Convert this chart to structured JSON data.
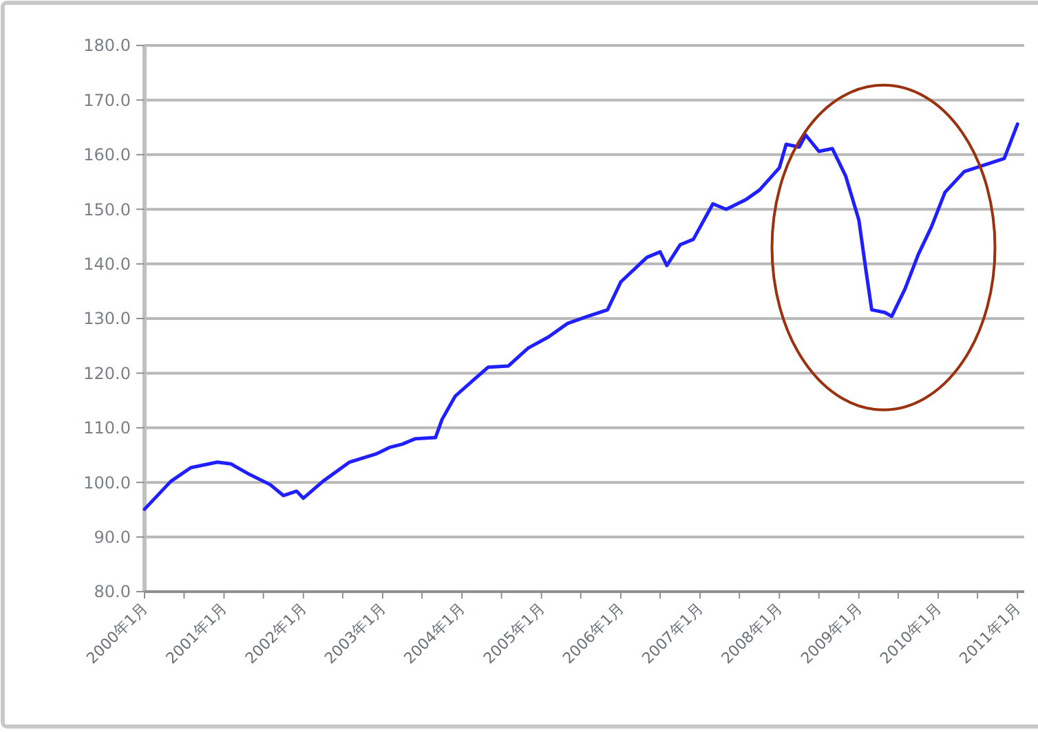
{
  "chart_data": {
    "type": "line",
    "grid": "y",
    "marker": "none",
    "line_style": "solid",
    "x": [
      "2000-01",
      "2000-05",
      "2000-08",
      "2000-12",
      "2001-02",
      "2001-05",
      "2001-08",
      "2001-10",
      "2001-12",
      "2002-01",
      "2002-04",
      "2002-08",
      "2002-12",
      "2003-02",
      "2003-04",
      "2003-06",
      "2003-09",
      "2003-10",
      "2003-12",
      "2004-03",
      "2004-05",
      "2004-08",
      "2004-11",
      "2005-02",
      "2005-05",
      "2005-08",
      "2005-11",
      "2006-01",
      "2006-05",
      "2006-07",
      "2006-08",
      "2006-10",
      "2006-12",
      "2007-03",
      "2007-05",
      "2007-08",
      "2007-10",
      "2008-01",
      "2008-02",
      "2008-04",
      "2008-05",
      "2008-07",
      "2008-09",
      "2008-11",
      "2009-01",
      "2009-02",
      "2009-03",
      "2009-05",
      "2009-06",
      "2009-08",
      "2009-10",
      "2009-12",
      "2010-02",
      "2010-05",
      "2010-08",
      "2010-11",
      "2011-01"
    ],
    "series": [
      {
        "color": "#2020ff",
        "values": [
          95.1,
          100.2,
          102.7,
          103.7,
          103.4,
          101.4,
          99.6,
          97.6,
          98.4,
          97.1,
          100.2,
          103.7,
          105.2,
          106.4,
          107,
          108,
          108.2,
          111.5,
          115.8,
          119,
          121.1,
          121.3,
          124.6,
          126.6,
          129.1,
          130.4,
          131.6,
          136.7,
          141.2,
          142.2,
          139.7,
          143.5,
          144.5,
          151,
          150,
          151.8,
          153.5,
          157.6,
          161.9,
          161.4,
          163.6,
          160.6,
          161.1,
          156.1,
          148,
          139.2,
          131.6,
          131.1,
          130.4,
          135.4,
          141.7,
          146.8,
          153.1,
          156.9,
          158.1,
          159.3,
          165.6
        ]
      }
    ],
    "xlim": [
      "2000-01",
      "2011-02"
    ],
    "xticks": [
      {
        "value": "2000-01",
        "label": "2000年1月"
      },
      {
        "value": "2000-07",
        "label": null
      },
      {
        "value": "2001-01",
        "label": "2001年1月"
      },
      {
        "value": "2001-07",
        "label": null
      },
      {
        "value": "2002-01",
        "label": "2002年1月"
      },
      {
        "value": "2002-07",
        "label": null
      },
      {
        "value": "2003-01",
        "label": "2003年1月"
      },
      {
        "value": "2003-07",
        "label": null
      },
      {
        "value": "2004-01",
        "label": "2004年1月"
      },
      {
        "value": "2004-07",
        "label": null
      },
      {
        "value": "2005-01",
        "label": "2005年1月"
      },
      {
        "value": "2005-07",
        "label": null
      },
      {
        "value": "2006-01",
        "label": "2006年1月"
      },
      {
        "value": "2006-07",
        "label": null
      },
      {
        "value": "2007-01",
        "label": "2007年1月"
      },
      {
        "value": "2007-07",
        "label": null
      },
      {
        "value": "2008-01",
        "label": "2008年1月"
      },
      {
        "value": "2008-07",
        "label": null
      },
      {
        "value": "2009-01",
        "label": "2009年1月"
      },
      {
        "value": "2009-07",
        "label": null
      },
      {
        "value": "2010-01",
        "label": "2010年1月"
      },
      {
        "value": "2010-07",
        "label": null
      },
      {
        "value": "2011-01",
        "label": "2011年1月"
      }
    ],
    "ylim": [
      80,
      180
    ],
    "yticks": [
      {
        "value": 80,
        "label": "80.0"
      },
      {
        "value": 90,
        "label": "90.0"
      },
      {
        "value": 100,
        "label": "100.0"
      },
      {
        "value": 110,
        "label": "110.0"
      },
      {
        "value": 120,
        "label": "120.0"
      },
      {
        "value": 130,
        "label": "130.0"
      },
      {
        "value": 140,
        "label": "140.0"
      },
      {
        "value": 150,
        "label": "150.0"
      },
      {
        "value": 160,
        "label": "160.0"
      },
      {
        "value": 170,
        "label": "170.0"
      },
      {
        "value": 180,
        "label": "180.0"
      }
    ]
  }
}
